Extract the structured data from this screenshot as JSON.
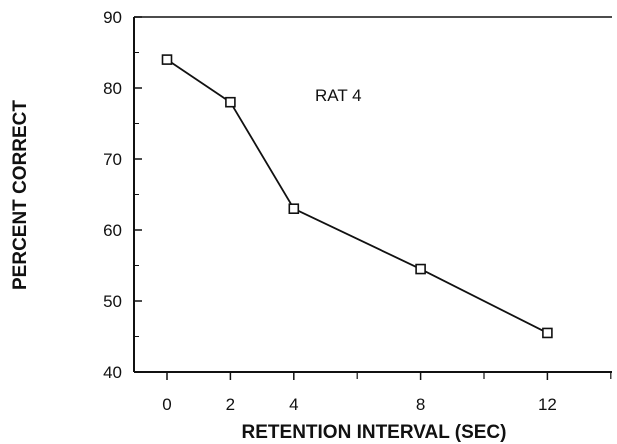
{
  "chart_data": {
    "type": "line",
    "title": "",
    "xlabel": "RETENTION INTERVAL (SEC)",
    "ylabel": "PERCENT CORRECT",
    "xlim": [
      -1,
      15
    ],
    "ylim": [
      40,
      90
    ],
    "x_ticks": [
      0,
      2,
      4,
      8,
      12
    ],
    "x_tick_labels": [
      "0",
      "2",
      "4",
      "8",
      "12"
    ],
    "y_ticks": [
      40,
      50,
      60,
      70,
      80,
      90
    ],
    "y_tick_labels": [
      "40",
      "50",
      "60",
      "70",
      "80",
      "90"
    ],
    "grid": false,
    "annotation": "RAT 4",
    "series": [
      {
        "marker": "square",
        "color": "#111111",
        "x": [
          0,
          2,
          4,
          8,
          12
        ],
        "y": [
          84,
          78,
          63,
          54.5,
          45.5
        ]
      }
    ]
  }
}
